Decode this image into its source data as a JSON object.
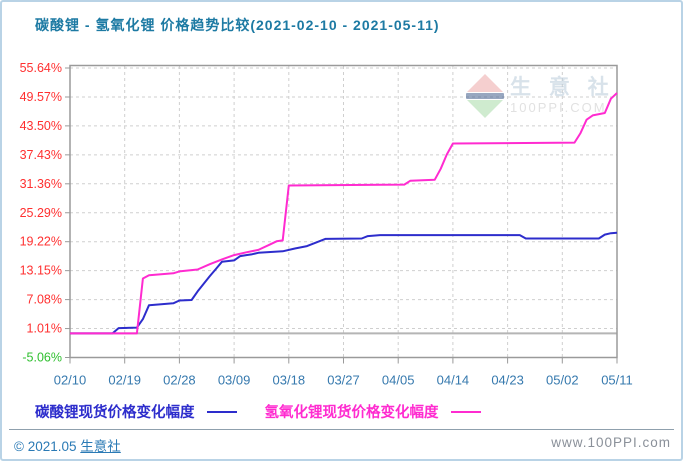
{
  "title": "碳酸锂 - 氢氧化锂 价格趋势比较(2021-02-10 - 2021-05-11)",
  "watermark": {
    "brand": "生 意 社",
    "site": "100PPI.COM"
  },
  "legend": {
    "items": [
      {
        "label": "碳酸锂现货价格变化幅度",
        "color": "#2d2dcc"
      },
      {
        "label": "氢氧化锂现货价格变化幅度",
        "color": "#ff2bd0"
      }
    ]
  },
  "footer": {
    "copyright_symbol": "©",
    "copyright": "2021.05",
    "brand": "生意社",
    "url": "www.100PPI.com"
  },
  "chart_data": {
    "type": "line",
    "title": "碳酸锂 - 氢氧化锂 价格趋势比较(2021-02-10 - 2021-05-11)",
    "xlabel": "",
    "ylabel": "",
    "x_tick_labels": [
      "02/10",
      "02/19",
      "02/28",
      "03/09",
      "03/18",
      "03/27",
      "04/05",
      "04/14",
      "04/23",
      "05/02",
      "05/11"
    ],
    "x_tick_days": [
      0,
      9,
      18,
      27,
      36,
      45,
      54,
      63,
      72,
      81,
      90
    ],
    "x_range_days": [
      0,
      90
    ],
    "y_ticks": [
      55.64,
      49.57,
      43.5,
      37.43,
      31.36,
      25.29,
      19.22,
      13.15,
      7.08,
      1.01,
      -5.06
    ],
    "y_tick_labels": [
      "55.64%",
      "49.57%",
      "43.50%",
      "37.43%",
      "31.36%",
      "25.29%",
      "19.22%",
      "13.15%",
      "7.08%",
      "1.01%",
      "-5.06%"
    ],
    "ylim": [
      -5.06,
      55.64
    ],
    "zero_line": 0,
    "grid": true,
    "legend_position": "bottom",
    "colors": {
      "y_tick_positive": "#ff3030",
      "y_tick_negative": "#2fbf2f",
      "x_tick": "#3679ae",
      "grid": "#cfcfcf",
      "zero_line": "#b5b5b5",
      "plot_border": "#9a9a9a"
    },
    "series": [
      {
        "name": "碳酸锂现货价格变化幅度",
        "color": "#2d2dcc",
        "points": [
          [
            0,
            0
          ],
          [
            7,
            0
          ],
          [
            8,
            1.1
          ],
          [
            11,
            1.2
          ],
          [
            12,
            3.0
          ],
          [
            13,
            5.9
          ],
          [
            15,
            6.1
          ],
          [
            17,
            6.3
          ],
          [
            18,
            6.9
          ],
          [
            20,
            7.0
          ],
          [
            21,
            8.8
          ],
          [
            22,
            10.4
          ],
          [
            23,
            12.0
          ],
          [
            24,
            13.5
          ],
          [
            25,
            15.0
          ],
          [
            27,
            15.3
          ],
          [
            28,
            16.2
          ],
          [
            29,
            16.4
          ],
          [
            30,
            16.6
          ],
          [
            31,
            16.9
          ],
          [
            35,
            17.2
          ],
          [
            37,
            17.8
          ],
          [
            39,
            18.3
          ],
          [
            40,
            18.8
          ],
          [
            41,
            19.3
          ],
          [
            42,
            19.8
          ],
          [
            48,
            19.9
          ],
          [
            49,
            20.4
          ],
          [
            51,
            20.6
          ],
          [
            74,
            20.6
          ],
          [
            75,
            19.9
          ],
          [
            87,
            19.9
          ],
          [
            88,
            20.7
          ],
          [
            89,
            21.0
          ],
          [
            90,
            21.1
          ]
        ]
      },
      {
        "name": "氢氧化锂现货价格变化幅度",
        "color": "#ff2bd0",
        "points": [
          [
            0,
            0
          ],
          [
            11,
            0
          ],
          [
            12,
            11.5
          ],
          [
            13,
            12.2
          ],
          [
            17,
            12.6
          ],
          [
            18,
            13.0
          ],
          [
            21,
            13.4
          ],
          [
            23,
            14.5
          ],
          [
            25,
            15.5
          ],
          [
            27,
            16.4
          ],
          [
            29,
            17.0
          ],
          [
            31,
            17.5
          ],
          [
            33,
            18.7
          ],
          [
            34,
            19.3
          ],
          [
            35,
            19.5
          ],
          [
            36,
            31.0
          ],
          [
            55,
            31.2
          ],
          [
            56,
            32.0
          ],
          [
            60,
            32.2
          ],
          [
            61,
            34.5
          ],
          [
            62,
            37.5
          ],
          [
            63,
            39.8
          ],
          [
            83,
            40.0
          ],
          [
            84,
            42.0
          ],
          [
            85,
            44.8
          ],
          [
            86,
            45.7
          ],
          [
            88,
            46.2
          ],
          [
            89,
            49.2
          ],
          [
            90,
            50.4
          ]
        ]
      }
    ]
  }
}
